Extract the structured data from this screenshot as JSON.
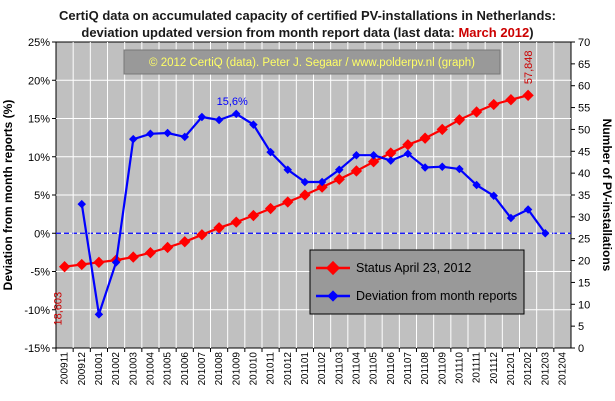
{
  "title_line1": "CertiQ data on accumulated capacity of certified PV-installations in Netherlands:",
  "title_line2_prefix": "deviation updated version from month report data (last data: ",
  "title_line2_highlight": "March 2012",
  "title_line2_suffix": ")",
  "credit": "© 2012 CertiQ (data). Peter J. Segaar / www.polderpv.nl (graph)",
  "colors": {
    "plot_bg": "#c0c0c0",
    "status": "#ff0000",
    "deviation": "#0000ff",
    "credit_bg": "#999999",
    "credit_text": "#ffff66",
    "label_red": "#cc0000"
  },
  "chart_data": {
    "type": "line",
    "categories": [
      "200911",
      "200912",
      "201001",
      "201002",
      "201003",
      "201004",
      "201005",
      "201006",
      "201007",
      "201008",
      "201009",
      "201010",
      "201011",
      "201012",
      "201101",
      "201102",
      "201103",
      "201104",
      "201105",
      "201106",
      "201107",
      "201108",
      "201109",
      "201110",
      "201111",
      "201112",
      "201201",
      "201202",
      "201203",
      "201204"
    ],
    "y_left": {
      "label": "Deviation from month reports (%)",
      "min": -15,
      "max": 25,
      "step": 5,
      "ticks": [
        "-15%",
        "-10%",
        "-5%",
        "0%",
        "5%",
        "10%",
        "15%",
        "20%",
        "25%"
      ]
    },
    "y_right": {
      "label": "Number of PV-installations",
      "min": 0,
      "max": 70,
      "step": 5,
      "ticks": [
        "0",
        "5",
        "10",
        "15",
        "20",
        "25",
        "30",
        "35",
        "40",
        "45",
        "50",
        "55",
        "60",
        "65",
        "70"
      ]
    },
    "grid": true,
    "zero_line": true,
    "legend_position": "lower-right",
    "series": [
      {
        "name": "Status April 23, 2012",
        "axis": "right",
        "color": "#ff0000",
        "values": [
          18.6,
          19.1,
          19.6,
          20.1,
          20.8,
          21.8,
          23.0,
          24.3,
          25.9,
          27.5,
          28.8,
          30.3,
          31.9,
          33.4,
          35.0,
          36.8,
          38.6,
          40.5,
          42.6,
          44.6,
          46.5,
          48.0,
          50.0,
          52.2,
          54.0,
          55.7,
          56.8,
          57.8,
          null,
          null
        ]
      },
      {
        "name": "Deviation from month reports",
        "axis": "left",
        "color": "#0000ff",
        "values": [
          null,
          3.8,
          -10.6,
          -3.8,
          12.3,
          13.0,
          13.1,
          12.6,
          15.2,
          14.8,
          15.6,
          14.2,
          10.6,
          8.3,
          6.7,
          6.7,
          8.3,
          10.2,
          10.2,
          9.5,
          10.4,
          8.6,
          8.7,
          8.4,
          6.3,
          4.9,
          2.0,
          3.1,
          0.0,
          null
        ]
      }
    ],
    "annotations": {
      "peak_label": "15,6%",
      "start_label": "18,603",
      "end_label": "57,848"
    }
  }
}
